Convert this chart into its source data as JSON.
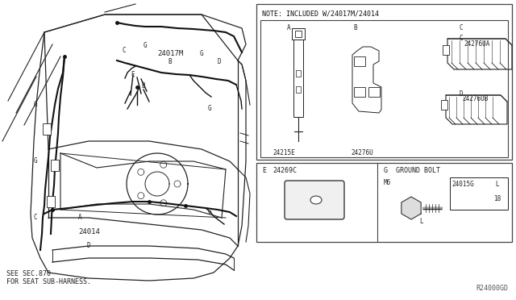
{
  "bg_color": "#ffffff",
  "fig_width": 6.4,
  "fig_height": 3.72,
  "dpi": 100,
  "note_text": "NOTE: INCLUDED W/24017M/24014",
  "bottom_left_text": "SEE SEC.870\nFOR SEAT SUB-HARNESS.",
  "bottom_right_text": "R24000GD",
  "lc": "#222222",
  "lw_body": 0.9,
  "lw_wire": 1.4
}
